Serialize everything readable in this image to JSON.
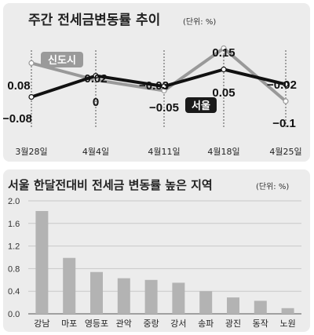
{
  "chart_data": [
    {
      "type": "line",
      "title": "주간 전세금변동률 추이",
      "unit": "(단위: %)",
      "categories": [
        "3월28일",
        "4월4일",
        "4월11일",
        "4월18일",
        "4월25일"
      ],
      "series": [
        {
          "name": "신도시",
          "color": "#999999",
          "values": [
            0.08,
            0.0,
            -0.05,
            0.15,
            -0.1
          ],
          "labels": [
            "0.08",
            "0",
            "-0.05",
            "0.15",
            "-0.1"
          ]
        },
        {
          "name": "서울",
          "color": "#111111",
          "values": [
            -0.08,
            0.02,
            -0.03,
            0.05,
            -0.02
          ],
          "labels": [
            "-0.08",
            "0.02",
            "-0.03",
            "0.05",
            "-0.02"
          ]
        }
      ],
      "grid": false
    },
    {
      "type": "bar",
      "title": "서울 한달전대비 전세금 변동률 높은 지역",
      "unit": "(단위: %)",
      "categories": [
        "강남",
        "마포",
        "영등포",
        "관악",
        "중랑",
        "강서",
        "송파",
        "광진",
        "동작",
        "노원"
      ],
      "values": [
        1.82,
        0.99,
        0.74,
        0.63,
        0.6,
        0.55,
        0.4,
        0.29,
        0.23,
        0.1
      ],
      "ylim": [
        0,
        2.0
      ],
      "yticks": [
        "2.0",
        "1.6",
        "1.2",
        "0.8",
        "0.4",
        "0.0"
      ],
      "bar_color": "#b3b3b3",
      "grid": true
    }
  ]
}
